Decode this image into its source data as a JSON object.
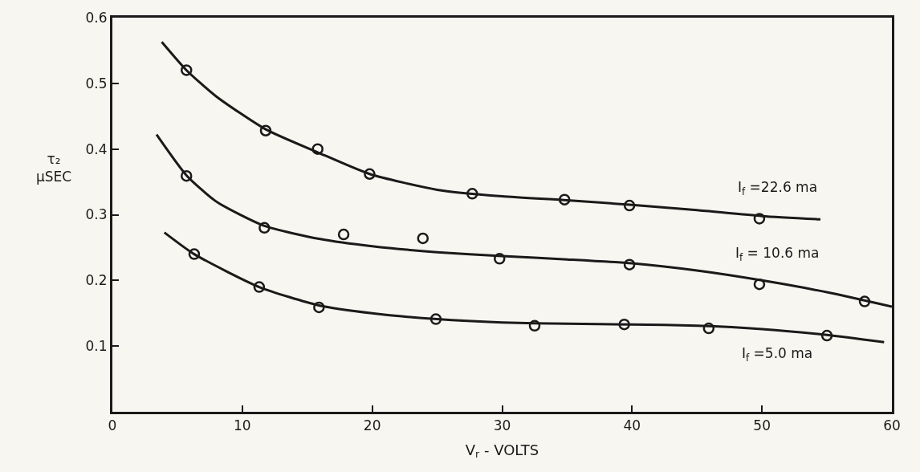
{
  "chart_data": {
    "type": "line",
    "xlabel": "V$_{r}$ - VOLTS",
    "ylabel": "τ₂ μSEC",
    "xlim": [
      0,
      60
    ],
    "xticks": [
      0,
      10,
      20,
      30,
      40,
      50,
      60
    ],
    "ylim": [
      0,
      0.6
    ],
    "yticks": [
      0.1,
      0.2,
      0.3,
      0.4,
      0.5,
      0.6
    ],
    "grid": false,
    "legend": false,
    "tick_labels": "xy",
    "series": [
      {
        "type": "scatter",
        "marker": "circle",
        "color": "#1a1a1a",
        "x": [
          5.7,
          11.8,
          15.8,
          19.8,
          27.7,
          34.8,
          39.8,
          49.8
        ],
        "values": [
          0.52,
          0.428,
          0.4,
          0.362,
          0.332,
          0.323,
          0.314,
          0.294
        ]
      },
      {
        "name": "I$_{f}$ =22.6 ma",
        "color": "#1a1a1a",
        "line_style": "solid",
        "x": [
          3.8,
          5.7,
          8,
          11.8,
          15.8,
          19.8,
          25,
          30,
          35,
          40,
          45,
          50,
          54.5
        ],
        "values": [
          0.563,
          0.52,
          0.48,
          0.43,
          0.395,
          0.362,
          0.338,
          0.328,
          0.322,
          0.315,
          0.307,
          0.298,
          0.293
        ]
      },
      {
        "type": "scatter",
        "marker": "circle",
        "color": "#1a1a1a",
        "x": [
          5.7,
          11.7,
          17.8,
          23.9,
          29.8,
          39.8,
          49.8,
          57.9
        ],
        "values": [
          0.359,
          0.28,
          0.27,
          0.264,
          0.233,
          0.224,
          0.194,
          0.168
        ]
      },
      {
        "name": "I$_{f}$ = 10.6 ma",
        "color": "#1a1a1a",
        "line_style": "solid",
        "x": [
          3.4,
          5.7,
          8,
          11.7,
          16,
          20,
          25,
          30,
          35,
          40,
          45,
          50,
          55,
          60
        ],
        "values": [
          0.422,
          0.36,
          0.32,
          0.283,
          0.263,
          0.252,
          0.243,
          0.237,
          0.232,
          0.226,
          0.215,
          0.2,
          0.182,
          0.16
        ]
      },
      {
        "type": "scatter",
        "marker": "circle",
        "color": "#1a1a1a",
        "x": [
          6.3,
          11.3,
          15.9,
          24.9,
          32.5,
          39.4,
          45.9,
          55.0
        ],
        "values": [
          0.24,
          0.19,
          0.159,
          0.141,
          0.131,
          0.133,
          0.127,
          0.116
        ]
      },
      {
        "name": "I$_{f}$ =5.0 ma",
        "color": "#1a1a1a",
        "line_style": "solid",
        "x": [
          4,
          6.3,
          11.3,
          15.9,
          20,
          25,
          30,
          35,
          40,
          45,
          50,
          55,
          59.4
        ],
        "values": [
          0.273,
          0.24,
          0.19,
          0.162,
          0.15,
          0.141,
          0.136,
          0.134,
          0.133,
          0.131,
          0.126,
          0.117,
          0.106
        ]
      }
    ]
  }
}
